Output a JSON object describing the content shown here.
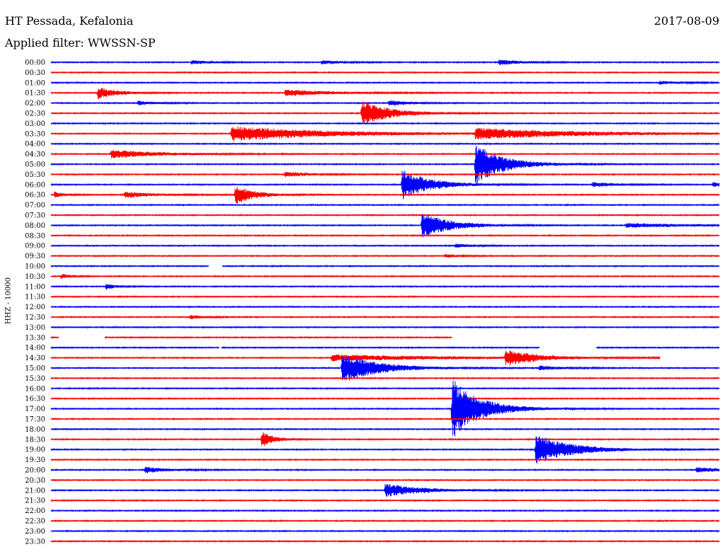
{
  "header": {
    "station": "HT Pessada, Kefalonia",
    "date": "2017-08-09",
    "filter": "Applied filter: WWSSN-SP"
  },
  "chart_data": {
    "type": "line",
    "title": "HT Pessada, Kefalonia",
    "subtitle": "Applied filter: WWSSN-SP",
    "ylabel": "HHZ - 10000",
    "xlabel": "",
    "x_unit": "minutes into trace",
    "xlim": [
      0,
      30
    ],
    "colors": [
      "#0000ff",
      "#ff0000"
    ],
    "rows": [
      {
        "label": "00:00",
        "events": [
          [
            21,
            0.4,
            0.8
          ],
          [
            40.5,
            0.4,
            0.8
          ],
          [
            67,
            0.5,
            1
          ]
        ],
        "gaps": []
      },
      {
        "label": "00:30",
        "events": [],
        "gaps": []
      },
      {
        "label": "01:00",
        "events": [
          [
            91,
            0.3,
            1
          ]
        ],
        "gaps": []
      },
      {
        "label": "01:30",
        "events": [
          [
            7,
            1.2,
            0.8
          ],
          [
            35,
            0.6,
            2
          ]
        ],
        "gaps": []
      },
      {
        "label": "02:00",
        "events": [
          [
            13,
            0.4,
            0.8
          ],
          [
            50.5,
            0.6,
            0.8
          ]
        ],
        "gaps": []
      },
      {
        "label": "02:30",
        "events": [
          [
            46.5,
            2.5,
            1.2
          ]
        ],
        "gaps": []
      },
      {
        "label": "03:00",
        "events": [],
        "gaps": []
      },
      {
        "label": "03:30",
        "events": [
          [
            27,
            1.5,
            4
          ],
          [
            63.5,
            1,
            4.5
          ]
        ],
        "gaps": []
      },
      {
        "label": "04:00",
        "events": [],
        "gaps": []
      },
      {
        "label": "04:30",
        "events": [
          [
            9,
            0.8,
            2
          ]
        ],
        "gaps": []
      },
      {
        "label": "05:00",
        "events": [
          [
            63.5,
            4,
            1.2
          ]
        ],
        "gaps": []
      },
      {
        "label": "05:30",
        "events": [
          [
            35,
            0.5,
            1
          ]
        ],
        "gaps": []
      },
      {
        "label": "06:00",
        "events": [
          [
            52.5,
            3,
            1.2
          ],
          [
            81,
            0.5,
            1
          ],
          [
            99,
            0.4,
            1
          ]
        ],
        "gaps": []
      },
      {
        "label": "06:30",
        "events": [
          [
            0.5,
            0.6,
            0.4
          ],
          [
            11,
            0.6,
            1.2
          ],
          [
            27.5,
            2,
            0.8
          ]
        ],
        "gaps": []
      },
      {
        "label": "07:00",
        "events": [],
        "gaps": []
      },
      {
        "label": "07:30",
        "events": [],
        "gaps": []
      },
      {
        "label": "08:00",
        "events": [
          [
            55.5,
            2.5,
            1.2
          ],
          [
            86,
            0.4,
            3
          ]
        ],
        "gaps": []
      },
      {
        "label": "08:30",
        "events": [],
        "gaps": []
      },
      {
        "label": "09:00",
        "events": [
          [
            60.5,
            0.4,
            0.6
          ]
        ],
        "gaps": []
      },
      {
        "label": "09:30",
        "events": [
          [
            59,
            0.3,
            0.6
          ]
        ],
        "gaps": []
      },
      {
        "label": "10:00",
        "events": [],
        "gaps": [
          [
            23.6,
            25.6
          ]
        ]
      },
      {
        "label": "10:30",
        "events": [
          [
            1.5,
            0.5,
            0.4
          ]
        ],
        "gaps": []
      },
      {
        "label": "11:00",
        "events": [
          [
            8.2,
            0.6,
            0.4
          ]
        ],
        "gaps": []
      },
      {
        "label": "11:30",
        "events": [],
        "gaps": []
      },
      {
        "label": "12:00",
        "events": [],
        "gaps": []
      },
      {
        "label": "12:30",
        "events": [
          [
            20.8,
            0.4,
            0.6
          ]
        ],
        "gaps": []
      },
      {
        "label": "13:00",
        "events": [],
        "gaps": []
      },
      {
        "label": "13:30",
        "events": [],
        "gaps": [
          [
            1.2,
            8
          ],
          [
            60,
            100
          ]
        ]
      },
      {
        "label": "14:00",
        "events": [],
        "gaps": [
          [
            25.2,
            25.5
          ],
          [
            73.1,
            81.6
          ]
        ]
      },
      {
        "label": "14:30",
        "events": [
          [
            42,
            0.6,
            5
          ],
          [
            68,
            1.6,
            1.2
          ]
        ],
        "gaps": [
          [
            91.2,
            100
          ]
        ]
      },
      {
        "label": "15:00",
        "events": [
          [
            43.5,
            3,
            1.5
          ],
          [
            73,
            0.4,
            1
          ]
        ],
        "gaps": []
      },
      {
        "label": "15:30",
        "events": [],
        "gaps": []
      },
      {
        "label": "16:00",
        "events": [],
        "gaps": []
      },
      {
        "label": "16:30",
        "events": [],
        "gaps": []
      },
      {
        "label": "17:00",
        "events": [
          [
            60,
            6,
            1.2
          ]
        ],
        "gaps": []
      },
      {
        "label": "17:30",
        "events": [],
        "gaps": []
      },
      {
        "label": "18:00",
        "events": [],
        "gaps": []
      },
      {
        "label": "18:30",
        "events": [
          [
            31.5,
            1.6,
            0.5
          ]
        ],
        "gaps": []
      },
      {
        "label": "19:00",
        "events": [
          [
            72.5,
            3,
            1.5
          ]
        ],
        "gaps": []
      },
      {
        "label": "19:30",
        "events": [],
        "gaps": []
      },
      {
        "label": "20:00",
        "events": [
          [
            14,
            0.6,
            1
          ],
          [
            96.5,
            0.5,
            1.2
          ]
        ],
        "gaps": []
      },
      {
        "label": "20:30",
        "events": [],
        "gaps": []
      },
      {
        "label": "21:00",
        "events": [
          [
            50,
            1.3,
            1.5
          ]
        ],
        "gaps": []
      },
      {
        "label": "21:30",
        "events": [],
        "gaps": []
      },
      {
        "label": "22:00",
        "events": [],
        "gaps": []
      },
      {
        "label": "22:30",
        "events": [],
        "gaps": []
      },
      {
        "label": "23:00",
        "events": [],
        "gaps": []
      },
      {
        "label": "23:30",
        "events": [],
        "gaps": []
      }
    ]
  }
}
